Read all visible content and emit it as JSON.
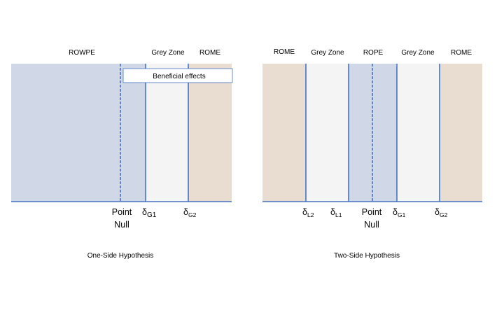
{
  "colors": {
    "rope": "#d0d8e8",
    "grey_zone": "#f4f4f4",
    "rome": "#e8ddd0",
    "line": "#4472c4",
    "text": "#000000"
  },
  "one_side": {
    "caption": "One-Side Hypothesis",
    "regions": {
      "rowpe": "ROWPE",
      "grey_zone": "Grey Zone",
      "rome": "ROME"
    },
    "callout": "Beneficial effects",
    "point_null": [
      "Point",
      "Null"
    ],
    "delta_g1": {
      "base": "δ",
      "sub": "G1"
    },
    "delta_g2": {
      "base": "δ",
      "sub": "G2"
    }
  },
  "two_side": {
    "caption": "Two-Side Hypothesis",
    "regions": {
      "rome_left": "ROME",
      "grey_left": "Grey Zone",
      "rope": "ROPE",
      "grey_right": "Grey Zone",
      "rome_right": "ROME"
    },
    "point_null": [
      "Point",
      "Null"
    ],
    "delta_l2": {
      "base": "δ",
      "sub": "L2"
    },
    "delta_l1": {
      "base": "δ",
      "sub": "L1"
    },
    "delta_g1": {
      "base": "δ",
      "sub": "G1"
    },
    "delta_g2": {
      "base": "δ",
      "sub": "G2"
    }
  }
}
